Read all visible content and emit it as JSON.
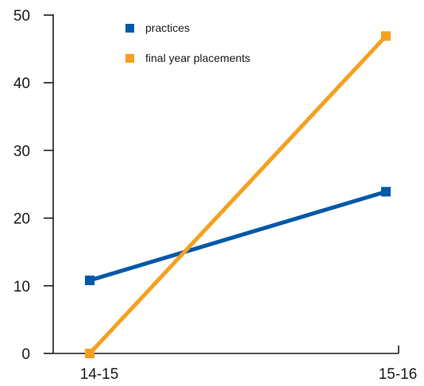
{
  "chart_data": {
    "type": "line",
    "title": "",
    "xlabel": "",
    "ylabel": "",
    "categories": [
      "14-15",
      "15-16"
    ],
    "ylim": [
      0,
      50
    ],
    "yticks": [
      "0",
      "10",
      "20",
      "30",
      "40",
      "50"
    ],
    "grid": false,
    "legend_position": "top-center",
    "series": [
      {
        "name": "practices",
        "values": [
          10.8,
          23.9
        ],
        "color": "#0058a8",
        "marker": "square"
      },
      {
        "name": "final year placements",
        "values": [
          0,
          46.9
        ],
        "color": "#f5a01f",
        "marker": "square"
      }
    ]
  }
}
